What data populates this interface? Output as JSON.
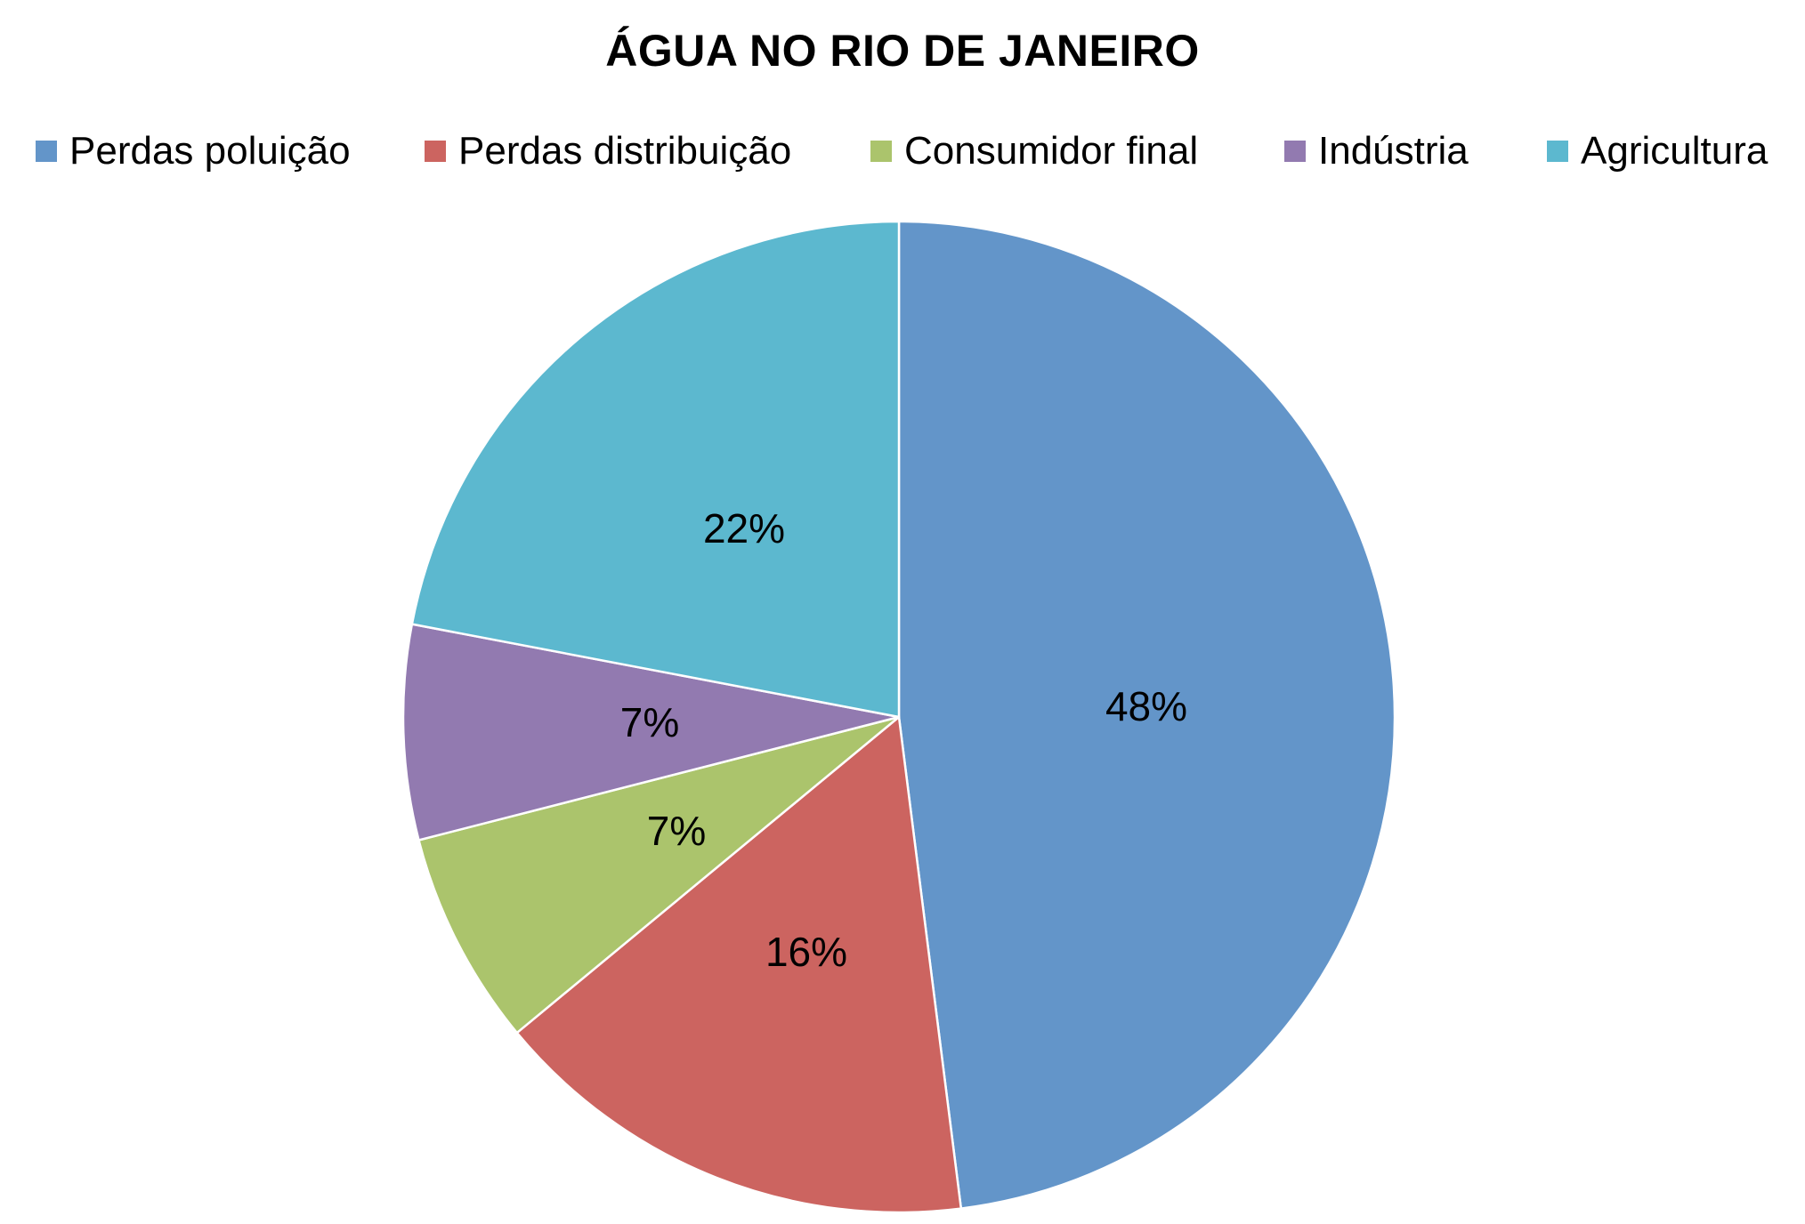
{
  "chart_data": {
    "type": "pie",
    "title": "ÁGUA NO RIO DE JANEIRO",
    "legend_position": "top",
    "slices": [
      {
        "name": "Perdas poluição",
        "value": 48,
        "label": "48%",
        "color": "#6395C9"
      },
      {
        "name": "Perdas distribuição",
        "value": 16,
        "label": "16%",
        "color": "#CC6460"
      },
      {
        "name": "Consumidor final",
        "value": 7,
        "label": "7%",
        "color": "#ABC46C"
      },
      {
        "name": "Indústria",
        "value": 7,
        "label": "7%",
        "color": "#927AB0"
      },
      {
        "name": "Agricultura",
        "value": 22,
        "label": "22%",
        "color": "#5CB8CF"
      }
    ]
  }
}
